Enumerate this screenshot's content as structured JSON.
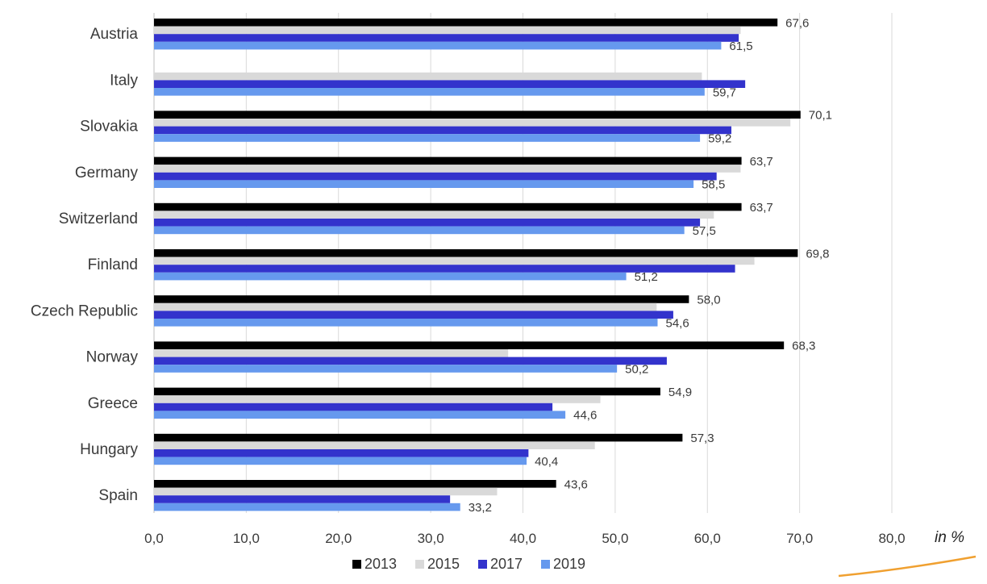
{
  "chart_data": {
    "type": "bar",
    "orientation": "horizontal",
    "categories": [
      "Austria",
      "Italy",
      "Slovakia",
      "Germany",
      "Switzerland",
      "Finland",
      "Czech Republic",
      "Norway",
      "Greece",
      "Hungary",
      "Spain"
    ],
    "series": [
      {
        "name": "2013",
        "color": "#000000",
        "values": [
          67.6,
          null,
          70.1,
          63.7,
          63.7,
          69.8,
          58.0,
          68.3,
          54.9,
          57.3,
          43.6
        ]
      },
      {
        "name": "2015",
        "color": "#d9d9d9",
        "values": [
          63.6,
          59.4,
          69.0,
          63.6,
          60.7,
          65.1,
          54.5,
          38.4,
          48.4,
          47.8,
          37.2
        ]
      },
      {
        "name": "2017",
        "color": "#3333cc",
        "values": [
          63.4,
          64.1,
          62.6,
          61.0,
          59.2,
          63.0,
          56.3,
          55.6,
          43.2,
          40.6,
          32.1
        ]
      },
      {
        "name": "2019",
        "color": "#6699ee",
        "values": [
          61.5,
          59.7,
          59.2,
          58.5,
          57.5,
          51.2,
          54.6,
          50.2,
          44.6,
          40.4,
          33.2
        ]
      }
    ],
    "labeled_series": [
      "2013",
      "2019"
    ],
    "data_labels": {
      "2013": [
        "67,6",
        "",
        "70,1",
        "63,7",
        "63,7",
        "69,8",
        "58,0",
        "68,3",
        "54,9",
        "57,3",
        "43,6"
      ],
      "2019": [
        "61,5",
        "59,7",
        "59,2",
        "58,5",
        "57,5",
        "51,2",
        "54,6",
        "50,2",
        "44,6",
        "40,4",
        "33,2"
      ]
    },
    "xlim": [
      0,
      80
    ],
    "xticks": [
      0,
      10,
      20,
      30,
      40,
      50,
      60,
      70,
      80
    ],
    "xtick_labels": [
      "0,0",
      "10,0",
      "20,0",
      "30,0",
      "40,0",
      "50,0",
      "60,0",
      "70,0",
      "80,0"
    ],
    "unit_label": "in %",
    "grid": "vertical",
    "legend": "bottom"
  }
}
